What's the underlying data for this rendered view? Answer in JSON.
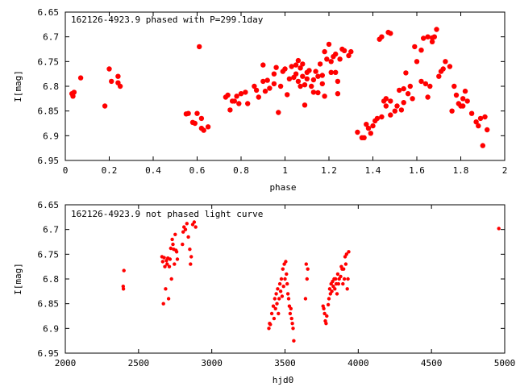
{
  "colors": {
    "points": "#ff0000",
    "axes": "#000000",
    "background": "#ffffff"
  },
  "chart_data": [
    {
      "type": "scatter",
      "title": "162126-4923.9 phased with P=299.1day",
      "xlabel": "phase",
      "ylabel": "I[mag]",
      "xlim": [
        0,
        2
      ],
      "ylim": [
        6.95,
        6.65
      ],
      "y_inverted": true,
      "grid": false,
      "legend": "none",
      "xticks": [
        "0",
        "0.2",
        "0.4",
        "0.6",
        "0.8",
        "1",
        "1.2",
        "1.4",
        "1.6",
        "1.8",
        "2"
      ],
      "yticks": [
        "6.65",
        "6.7",
        "6.75",
        "6.8",
        "6.85",
        "6.9",
        "6.95"
      ],
      "points": [
        [
          0.03,
          6.815
        ],
        [
          0.035,
          6.82
        ],
        [
          0.04,
          6.812
        ],
        [
          0.07,
          6.783
        ],
        [
          0.18,
          6.84
        ],
        [
          0.2,
          6.765
        ],
        [
          0.21,
          6.79
        ],
        [
          0.24,
          6.78
        ],
        [
          0.24,
          6.793
        ],
        [
          0.25,
          6.8
        ],
        [
          0.55,
          6.856
        ],
        [
          0.56,
          6.855
        ],
        [
          0.58,
          6.873
        ],
        [
          0.59,
          6.875
        ],
        [
          0.6,
          6.855
        ],
        [
          0.61,
          6.72
        ],
        [
          0.62,
          6.865
        ],
        [
          0.62,
          6.885
        ],
        [
          0.63,
          6.889
        ],
        [
          0.65,
          6.882
        ],
        [
          0.73,
          6.822
        ],
        [
          0.74,
          6.818
        ],
        [
          0.75,
          6.848
        ],
        [
          0.76,
          6.83
        ],
        [
          0.77,
          6.83
        ],
        [
          0.78,
          6.82
        ],
        [
          0.79,
          6.835
        ],
        [
          0.8,
          6.815
        ],
        [
          0.82,
          6.812
        ],
        [
          0.83,
          6.835
        ],
        [
          0.86,
          6.8
        ],
        [
          0.87,
          6.808
        ],
        [
          0.88,
          6.822
        ],
        [
          0.9,
          6.757
        ],
        [
          0.9,
          6.79
        ],
        [
          0.91,
          6.81
        ],
        [
          0.92,
          6.788
        ],
        [
          0.93,
          6.804
        ],
        [
          0.95,
          6.795
        ],
        [
          0.95,
          6.775
        ],
        [
          0.96,
          6.762
        ],
        [
          0.97,
          6.853
        ],
        [
          0.98,
          6.8
        ],
        [
          0.99,
          6.77
        ],
        [
          1.0,
          6.765
        ],
        [
          1.01,
          6.817
        ],
        [
          1.02,
          6.785
        ],
        [
          1.03,
          6.76
        ],
        [
          1.04,
          6.782
        ],
        [
          1.05,
          6.757
        ],
        [
          1.05,
          6.775
        ],
        [
          1.06,
          6.748
        ],
        [
          1.06,
          6.79
        ],
        [
          1.07,
          6.763
        ],
        [
          1.07,
          6.8
        ],
        [
          1.08,
          6.78
        ],
        [
          1.08,
          6.755
        ],
        [
          1.09,
          6.797
        ],
        [
          1.09,
          6.838
        ],
        [
          1.1,
          6.772
        ],
        [
          1.1,
          6.785
        ],
        [
          1.11,
          6.768
        ],
        [
          1.12,
          6.8
        ],
        [
          1.13,
          6.812
        ],
        [
          1.13,
          6.787
        ],
        [
          1.14,
          6.77
        ],
        [
          1.15,
          6.78
        ],
        [
          1.15,
          6.813
        ],
        [
          1.16,
          6.755
        ],
        [
          1.17,
          6.778
        ],
        [
          1.17,
          6.795
        ],
        [
          1.18,
          6.73
        ],
        [
          1.18,
          6.82
        ],
        [
          1.19,
          6.745
        ],
        [
          1.2,
          6.715
        ],
        [
          1.21,
          6.772
        ],
        [
          1.21,
          6.75
        ],
        [
          1.22,
          6.74
        ],
        [
          1.23,
          6.772
        ],
        [
          1.23,
          6.735
        ],
        [
          1.24,
          6.79
        ],
        [
          1.24,
          6.815
        ],
        [
          1.25,
          6.745
        ],
        [
          1.26,
          6.725
        ],
        [
          1.27,
          6.728
        ],
        [
          1.29,
          6.738
        ],
        [
          1.3,
          6.73
        ],
        [
          1.33,
          6.893
        ],
        [
          1.35,
          6.904
        ],
        [
          1.36,
          6.904
        ],
        [
          1.37,
          6.877
        ],
        [
          1.38,
          6.885
        ],
        [
          1.39,
          6.895
        ],
        [
          1.4,
          6.88
        ],
        [
          1.41,
          6.87
        ],
        [
          1.42,
          6.865
        ],
        [
          1.43,
          6.705
        ],
        [
          1.44,
          6.7
        ],
        [
          1.44,
          6.862
        ],
        [
          1.45,
          6.83
        ],
        [
          1.46,
          6.825
        ],
        [
          1.46,
          6.84
        ],
        [
          1.47,
          6.691
        ],
        [
          1.48,
          6.693
        ],
        [
          1.48,
          6.83
        ],
        [
          1.48,
          6.858
        ],
        [
          1.5,
          6.85
        ],
        [
          1.51,
          6.84
        ],
        [
          1.52,
          6.808
        ],
        [
          1.53,
          6.848
        ],
        [
          1.54,
          6.833
        ],
        [
          1.54,
          6.805
        ],
        [
          1.55,
          6.773
        ],
        [
          1.56,
          6.815
        ],
        [
          1.57,
          6.8
        ],
        [
          1.58,
          6.825
        ],
        [
          1.59,
          6.72
        ],
        [
          1.6,
          6.75
        ],
        [
          1.62,
          6.727
        ],
        [
          1.62,
          6.79
        ],
        [
          1.63,
          6.703
        ],
        [
          1.64,
          6.795
        ],
        [
          1.65,
          6.7
        ],
        [
          1.65,
          6.822
        ],
        [
          1.66,
          6.8
        ],
        [
          1.67,
          6.71
        ],
        [
          1.67,
          6.702
        ],
        [
          1.68,
          6.7
        ],
        [
          1.69,
          6.685
        ],
        [
          1.7,
          6.78
        ],
        [
          1.71,
          6.77
        ],
        [
          1.72,
          6.765
        ],
        [
          1.73,
          6.75
        ],
        [
          1.75,
          6.76
        ],
        [
          1.76,
          6.85
        ],
        [
          1.77,
          6.8
        ],
        [
          1.78,
          6.818
        ],
        [
          1.79,
          6.835
        ],
        [
          1.8,
          6.84
        ],
        [
          1.81,
          6.84
        ],
        [
          1.81,
          6.825
        ],
        [
          1.82,
          6.81
        ],
        [
          1.83,
          6.83
        ],
        [
          1.85,
          6.855
        ],
        [
          1.87,
          6.872
        ],
        [
          1.88,
          6.88
        ],
        [
          1.89,
          6.865
        ],
        [
          1.9,
          6.92
        ],
        [
          1.91,
          6.862
        ],
        [
          1.92,
          6.888
        ]
      ]
    },
    {
      "type": "scatter",
      "title": "162126-4923.9 not phased light curve",
      "xlabel": "hjd0",
      "ylabel": "I[mag]",
      "xlim": [
        2000,
        5000
      ],
      "ylim": [
        6.95,
        6.65
      ],
      "y_inverted": true,
      "grid": false,
      "legend": "none",
      "xticks": [
        "2000",
        "2500",
        "3000",
        "3500",
        "4000",
        "4500",
        "5000"
      ],
      "yticks": [
        "6.65",
        "6.7",
        "6.75",
        "6.8",
        "6.85",
        "6.9",
        "6.95"
      ],
      "points": [
        [
          2395,
          6.815
        ],
        [
          2397,
          6.82
        ],
        [
          2400,
          6.783
        ],
        [
          2660,
          6.755
        ],
        [
          2665,
          6.765
        ],
        [
          2670,
          6.85
        ],
        [
          2675,
          6.757
        ],
        [
          2680,
          6.775
        ],
        [
          2685,
          6.82
        ],
        [
          2690,
          6.763
        ],
        [
          2695,
          6.77
        ],
        [
          2700,
          6.758
        ],
        [
          2705,
          6.84
        ],
        [
          2710,
          6.775
        ],
        [
          2715,
          6.76
        ],
        [
          2720,
          6.738
        ],
        [
          2725,
          6.8
        ],
        [
          2730,
          6.72
        ],
        [
          2735,
          6.73
        ],
        [
          2740,
          6.74
        ],
        [
          2745,
          6.77
        ],
        [
          2750,
          6.71
        ],
        [
          2755,
          6.742
        ],
        [
          2760,
          6.745
        ],
        [
          2765,
          6.76
        ],
        [
          2800,
          6.73
        ],
        [
          2805,
          6.705
        ],
        [
          2810,
          6.695
        ],
        [
          2820,
          6.7
        ],
        [
          2830,
          6.688
        ],
        [
          2840,
          6.715
        ],
        [
          2850,
          6.74
        ],
        [
          2855,
          6.77
        ],
        [
          2860,
          6.755
        ],
        [
          2870,
          6.69
        ],
        [
          2880,
          6.685
        ],
        [
          2890,
          6.695
        ],
        [
          3390,
          6.9
        ],
        [
          3395,
          6.89
        ],
        [
          3400,
          6.892
        ],
        [
          3410,
          6.87
        ],
        [
          3420,
          6.855
        ],
        [
          3425,
          6.88
        ],
        [
          3430,
          6.84
        ],
        [
          3435,
          6.86
        ],
        [
          3440,
          6.83
        ],
        [
          3445,
          6.85
        ],
        [
          3450,
          6.82
        ],
        [
          3455,
          6.87
        ],
        [
          3460,
          6.84
        ],
        [
          3465,
          6.81
        ],
        [
          3470,
          6.825
        ],
        [
          3475,
          6.8
        ],
        [
          3480,
          6.835
        ],
        [
          3485,
          6.78
        ],
        [
          3490,
          6.815
        ],
        [
          3495,
          6.77
        ],
        [
          3500,
          6.8
        ],
        [
          3505,
          6.765
        ],
        [
          3510,
          6.79
        ],
        [
          3515,
          6.81
        ],
        [
          3520,
          6.83
        ],
        [
          3525,
          6.84
        ],
        [
          3530,
          6.855
        ],
        [
          3535,
          6.87
        ],
        [
          3540,
          6.86
        ],
        [
          3545,
          6.88
        ],
        [
          3550,
          6.89
        ],
        [
          3555,
          6.9
        ],
        [
          3560,
          6.925
        ],
        [
          3640,
          6.84
        ],
        [
          3645,
          6.77
        ],
        [
          3650,
          6.8
        ],
        [
          3655,
          6.78
        ],
        [
          3760,
          6.855
        ],
        [
          3765,
          6.86
        ],
        [
          3770,
          6.87
        ],
        [
          3775,
          6.885
        ],
        [
          3780,
          6.89
        ],
        [
          3785,
          6.875
        ],
        [
          3795,
          6.852
        ],
        [
          3800,
          6.84
        ],
        [
          3805,
          6.82
        ],
        [
          3810,
          6.83
        ],
        [
          3815,
          6.81
        ],
        [
          3820,
          6.825
        ],
        [
          3825,
          6.805
        ],
        [
          3830,
          6.815
        ],
        [
          3835,
          6.8
        ],
        [
          3840,
          6.82
        ],
        [
          3845,
          6.8
        ],
        [
          3850,
          6.81
        ],
        [
          3855,
          6.83
        ],
        [
          3860,
          6.79
        ],
        [
          3865,
          6.81
        ],
        [
          3870,
          6.8
        ],
        [
          3880,
          6.795
        ],
        [
          3885,
          6.775
        ],
        [
          3890,
          6.78
        ],
        [
          3895,
          6.81
        ],
        [
          3900,
          6.78
        ],
        [
          3905,
          6.8
        ],
        [
          3910,
          6.755
        ],
        [
          3915,
          6.77
        ],
        [
          3920,
          6.75
        ],
        [
          3925,
          6.82
        ],
        [
          3930,
          6.8
        ],
        [
          3935,
          6.745
        ],
        [
          4960,
          6.698
        ]
      ]
    }
  ]
}
